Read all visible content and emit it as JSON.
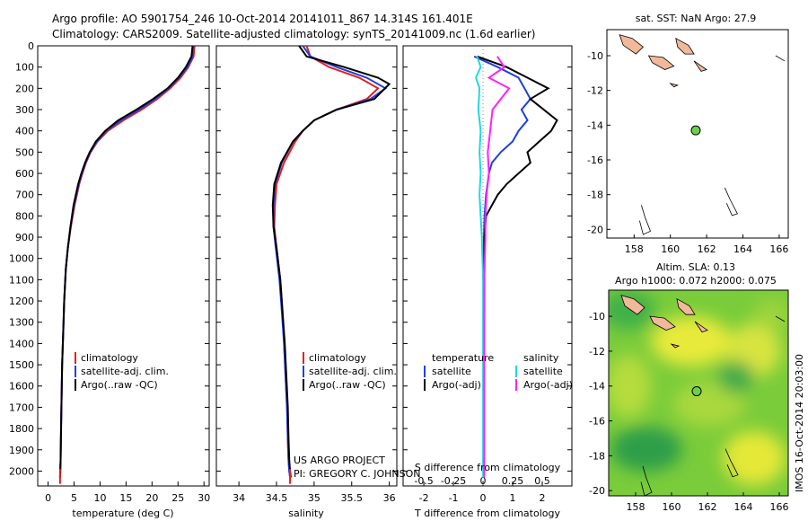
{
  "header": {
    "line1": "Argo profile: AO 5901754_246 10-Oct-2014 20141011_867 14.314S 161.401E",
    "line2": "Climatology: CARS2009. Satellite-adjusted climatology: synTS_20141009.nc (1.6d earlier)"
  },
  "side_label": "IMOS 16-Oct-2014 20:03:00",
  "colors": {
    "climatology": "#e02020",
    "satellite": "#1f3fe0",
    "argo": "#000000",
    "sal_sat": "#20d8e0",
    "sal_argo": "#ff20ff",
    "land": "#f2b89a",
    "float_marker": "#6ad04a"
  },
  "chart_data": [
    {
      "type": "line",
      "id": "temperature",
      "xlabel": "temperature (deg C)",
      "ylabel": "",
      "xlim": [
        -2,
        31
      ],
      "ylim": [
        2070,
        0
      ],
      "xticks": [
        0,
        5,
        10,
        15,
        20,
        25,
        30
      ],
      "yticks": [
        0,
        100,
        200,
        300,
        400,
        500,
        600,
        700,
        800,
        900,
        1000,
        1100,
        1200,
        1300,
        1400,
        1500,
        1600,
        1700,
        1800,
        1900,
        2000
      ],
      "legend": [
        "climatology",
        "satellite-adj. clim.",
        "Argo(..raw -QC)"
      ],
      "series": [
        {
          "name": "climatology",
          "color": "#e02020",
          "x": [
            28.2,
            28.0,
            27.0,
            25.5,
            23.5,
            21.0,
            18.0,
            14.5,
            11.5,
            9.5,
            8.2,
            7.3,
            6.6,
            6.0,
            5.1,
            4.4,
            3.8,
            3.4,
            3.1,
            2.9,
            2.7,
            2.6,
            2.5,
            2.4,
            2.3
          ],
          "y": [
            0,
            50,
            100,
            150,
            200,
            250,
            300,
            350,
            400,
            450,
            500,
            550,
            600,
            650,
            750,
            850,
            950,
            1050,
            1200,
            1350,
            1500,
            1650,
            1800,
            1950,
            2030
          ]
        },
        {
          "name": "satellite-adj. clim.",
          "color": "#1f3fe0",
          "x": [
            28.0,
            27.8,
            26.8,
            25.2,
            23.2,
            20.6,
            17.5,
            14.0,
            11.2,
            9.4,
            8.1,
            7.2,
            6.5,
            5.9,
            5.0,
            4.3,
            3.8,
            3.4,
            3.1,
            2.9,
            2.7,
            2.6,
            2.5,
            2.4,
            2.3
          ],
          "y": [
            0,
            50,
            100,
            150,
            200,
            250,
            300,
            350,
            400,
            450,
            500,
            550,
            600,
            650,
            750,
            850,
            950,
            1050,
            1200,
            1350,
            1500,
            1650,
            1800,
            1950,
            2030
          ]
        },
        {
          "name": "Argo(..raw -QC)",
          "color": "#000000",
          "x": [
            27.8,
            27.6,
            26.5,
            25.0,
            23.0,
            20.2,
            17.0,
            13.5,
            11.0,
            9.2,
            8.0,
            7.1,
            6.4,
            5.8,
            4.9,
            4.3,
            3.8,
            3.4,
            3.1,
            2.9,
            2.7,
            2.6,
            2.5,
            2.4,
            2.3
          ],
          "y": [
            0,
            50,
            100,
            150,
            200,
            250,
            300,
            350,
            400,
            450,
            500,
            550,
            600,
            650,
            750,
            850,
            950,
            1050,
            1200,
            1350,
            1500,
            1650,
            1800,
            1950,
            2030
          ]
        }
      ]
    },
    {
      "type": "line",
      "id": "salinity",
      "xlabel": "salinity",
      "ylabel": "",
      "xlim": [
        33.7,
        36.1
      ],
      "ylim": [
        2070,
        0
      ],
      "xticks": [
        34,
        34.5,
        35,
        35.5,
        36
      ],
      "legend": [
        "climatology",
        "satellite-adj. clim.",
        "Argo(..raw -QC)"
      ],
      "annotation": [
        "US ARGO PROJECT",
        "PI: GREGORY C. JOHNSON"
      ],
      "series": [
        {
          "name": "climatology",
          "color": "#e02020",
          "x": [
            34.9,
            34.95,
            35.2,
            35.6,
            35.85,
            35.7,
            35.3,
            35.0,
            34.85,
            34.75,
            34.6,
            34.5,
            34.48,
            34.47,
            34.5,
            34.55,
            34.58,
            34.6,
            34.62,
            34.64,
            34.65,
            34.66,
            34.67,
            34.68
          ],
          "y": [
            0,
            50,
            100,
            150,
            200,
            250,
            300,
            350,
            400,
            450,
            550,
            650,
            750,
            850,
            950,
            1100,
            1250,
            1400,
            1550,
            1700,
            1850,
            1950,
            2000,
            2030
          ]
        },
        {
          "name": "satellite-adj. clim.",
          "color": "#1f3fe0",
          "x": [
            34.85,
            34.95,
            35.3,
            35.7,
            35.95,
            35.75,
            35.3,
            35.0,
            34.85,
            34.72,
            34.57,
            34.48,
            34.46,
            34.46,
            34.49,
            34.54,
            34.57,
            34.6,
            34.62,
            34.64,
            34.65,
            34.66,
            34.67,
            34.68
          ],
          "y": [
            0,
            50,
            100,
            150,
            200,
            250,
            300,
            350,
            400,
            450,
            550,
            650,
            750,
            850,
            950,
            1100,
            1250,
            1400,
            1550,
            1700,
            1850,
            1950,
            2000,
            2030
          ]
        },
        {
          "name": "Argo(..raw -QC)",
          "color": "#000000",
          "x": [
            34.8,
            34.9,
            35.4,
            35.85,
            36.0,
            35.8,
            35.3,
            35.0,
            34.85,
            34.72,
            34.56,
            34.47,
            34.45,
            34.46,
            34.5,
            34.55,
            34.58,
            34.61,
            34.63,
            34.65,
            34.66,
            34.67,
            34.68,
            34.69
          ],
          "y": [
            0,
            50,
            100,
            150,
            180,
            250,
            300,
            350,
            400,
            450,
            550,
            650,
            750,
            850,
            950,
            1100,
            1250,
            1400,
            1550,
            1700,
            1850,
            1950,
            2000,
            2030
          ]
        }
      ]
    },
    {
      "type": "line",
      "id": "difference",
      "xlabel": "T difference from climatology",
      "xlabel_top": "S difference from climatology",
      "ylabel": "",
      "xlim": [
        -2.7,
        3.0
      ],
      "xlim_salinity": [
        -0.675,
        0.75
      ],
      "ylim": [
        2070,
        0
      ],
      "xticks": [
        -2,
        -1,
        0,
        1,
        2
      ],
      "xticks_salinity": [
        -0.5,
        -0.25,
        0,
        0.25,
        0.5
      ],
      "legend": {
        "temperature": {
          "title": "temperature",
          "items": [
            "satellite",
            "Argo(-adj)"
          ]
        },
        "salinity": {
          "title": "salinity",
          "items": [
            "satellite",
            "Argo(-adj)"
          ]
        }
      },
      "series": [
        {
          "name": "satellite",
          "group": "temperature",
          "color": "#1f3fe0",
          "x": [
            -0.3,
            0.5,
            1.2,
            1.4,
            1.6,
            1.3,
            1.5,
            1.2,
            1.0,
            0.6,
            0.3,
            0.2,
            0.15,
            0.1,
            0.05,
            0.03,
            0.02,
            0.02,
            0.02,
            0.02
          ],
          "y": [
            50,
            100,
            150,
            200,
            250,
            300,
            350,
            400,
            450,
            500,
            550,
            600,
            650,
            700,
            800,
            900,
            1100,
            1400,
            1800,
            2030
          ]
        },
        {
          "name": "Argo(-adj)",
          "group": "temperature",
          "color": "#000000",
          "x": [
            -0.2,
            0.8,
            1.5,
            2.2,
            1.6,
            2.5,
            2.3,
            1.9,
            1.5,
            1.6,
            1.2,
            0.8,
            0.5,
            0.3,
            0.1,
            0.05,
            0.04,
            0.03,
            0.03,
            0.03
          ],
          "y": [
            50,
            100,
            150,
            200,
            250,
            350,
            400,
            450,
            500,
            550,
            600,
            650,
            700,
            750,
            800,
            900,
            1100,
            1400,
            1800,
            2030
          ]
        },
        {
          "name": "satellite",
          "group": "salinity",
          "color": "#20d8e0",
          "x": [
            -0.05,
            -0.02,
            -0.06,
            -0.03,
            -0.04,
            -0.02,
            -0.03,
            -0.02,
            -0.03,
            -0.02,
            -0.01,
            0.0,
            0.0,
            0.0,
            0.0
          ],
          "y": [
            50,
            100,
            150,
            200,
            300,
            400,
            500,
            600,
            700,
            800,
            900,
            1100,
            1400,
            1800,
            2030
          ]
        },
        {
          "name": "Argo(-adj)",
          "group": "salinity",
          "color": "#ff20ff",
          "x": [
            0.12,
            0.18,
            0.05,
            0.22,
            0.08,
            0.06,
            0.04,
            0.05,
            0.03,
            0.02,
            0.02,
            0.01,
            0.01,
            0.01,
            0.01
          ],
          "y": [
            50,
            100,
            150,
            200,
            300,
            400,
            500,
            600,
            700,
            800,
            900,
            1100,
            1400,
            1800,
            2030
          ]
        }
      ]
    },
    {
      "type": "scatter",
      "id": "map-sst",
      "title": "sat. SST: NaN Argo: 27.9",
      "xlim": [
        156.5,
        166.5
      ],
      "ylim": [
        -20.5,
        -8.5
      ],
      "xticks": [
        158,
        160,
        162,
        164,
        166
      ],
      "yticks": [
        -10,
        -12,
        -14,
        -16,
        -18,
        -20
      ],
      "float": {
        "lon": 161.4,
        "lat": -14.3
      }
    },
    {
      "type": "heatmap",
      "id": "map-sla",
      "title_lines": [
        "Altim. SLA: 0.13",
        "Argo h1000: 0.072 h2000: 0.075"
      ],
      "xlim": [
        156.5,
        166.5
      ],
      "ylim": [
        -20.3,
        -8.5
      ],
      "xticks": [
        158,
        160,
        162,
        164,
        166
      ],
      "yticks": [
        -10,
        -12,
        -14,
        -16,
        -18,
        -20
      ],
      "float": {
        "lon": 161.4,
        "lat": -14.3
      }
    }
  ]
}
